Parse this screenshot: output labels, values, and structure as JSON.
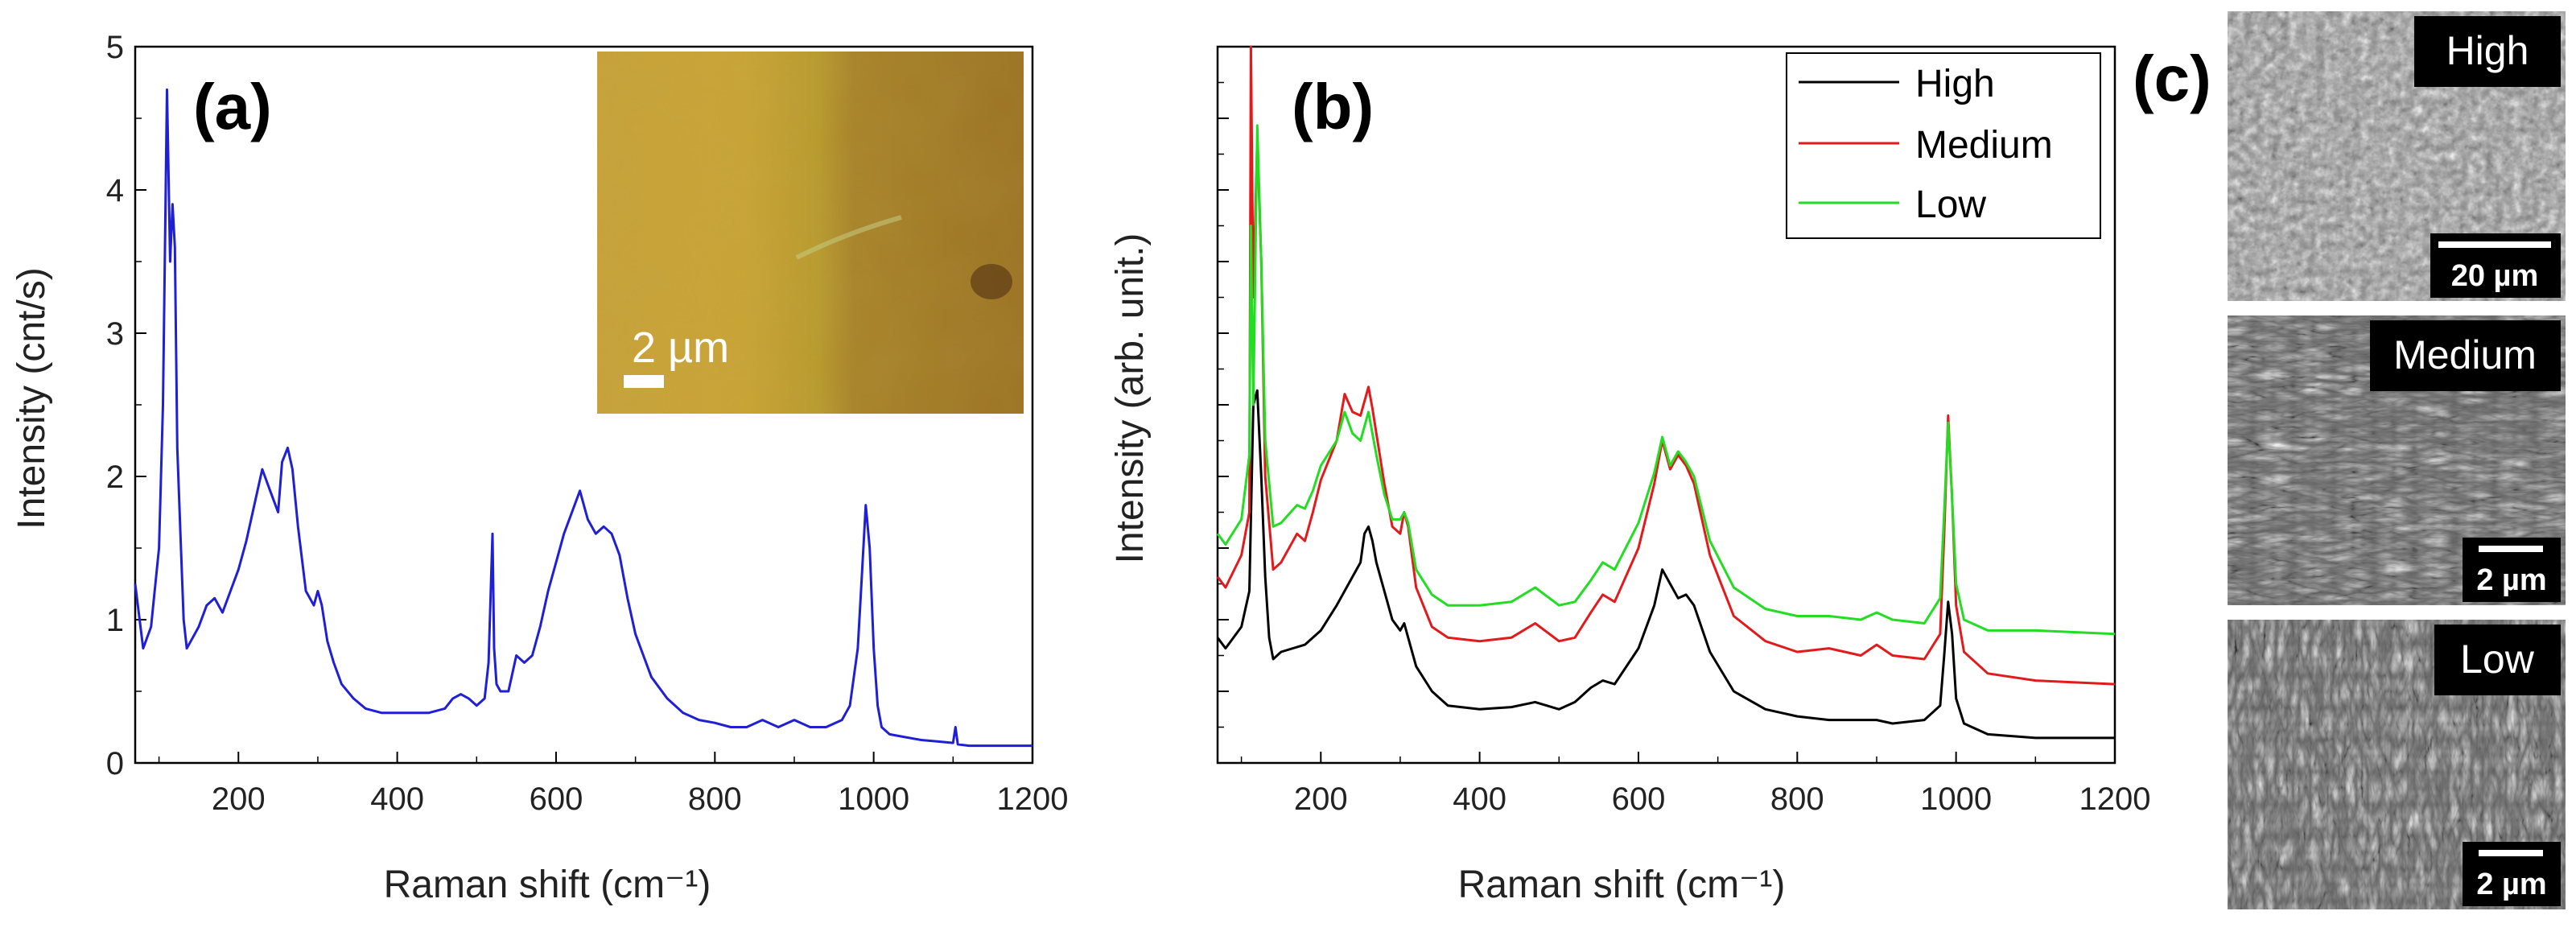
{
  "chart_data": [
    {
      "type": "line",
      "panel_label": "(a)",
      "xlabel": "Raman shift (cm⁻¹)",
      "ylabel": "Intensity (cnt/s)",
      "xlim": [
        70,
        1200
      ],
      "ylim": [
        0,
        5
      ],
      "xticks": [
        200,
        400,
        600,
        800,
        1000,
        1200
      ],
      "yticks": [
        0,
        1,
        2,
        3,
        4,
        5
      ],
      "series": [
        {
          "color": "#1f1fd6",
          "x": [
            70,
            80,
            90,
            100,
            105,
            110,
            114,
            117,
            120,
            123,
            127,
            131,
            135,
            140,
            150,
            160,
            170,
            180,
            190,
            200,
            210,
            220,
            230,
            240,
            250,
            255,
            262,
            268,
            275,
            285,
            295,
            300,
            305,
            312,
            320,
            330,
            345,
            360,
            380,
            400,
            420,
            440,
            460,
            470,
            480,
            490,
            500,
            510,
            515,
            520,
            522,
            525,
            530,
            540,
            550,
            560,
            570,
            580,
            590,
            600,
            610,
            620,
            630,
            640,
            650,
            660,
            670,
            680,
            690,
            700,
            710,
            720,
            740,
            760,
            780,
            800,
            820,
            840,
            860,
            880,
            900,
            920,
            940,
            960,
            970,
            980,
            985,
            990,
            995,
            1000,
            1005,
            1010,
            1020,
            1040,
            1060,
            1080,
            1100,
            1103,
            1106,
            1120,
            1140,
            1160,
            1180,
            1200
          ],
          "values": [
            1.25,
            0.8,
            0.95,
            1.5,
            2.5,
            4.7,
            3.5,
            3.9,
            3.6,
            2.2,
            1.6,
            1.0,
            0.8,
            0.85,
            0.95,
            1.1,
            1.15,
            1.05,
            1.2,
            1.35,
            1.55,
            1.8,
            2.05,
            1.9,
            1.75,
            2.1,
            2.2,
            2.05,
            1.65,
            1.2,
            1.1,
            1.2,
            1.1,
            0.85,
            0.7,
            0.55,
            0.45,
            0.38,
            0.35,
            0.35,
            0.35,
            0.35,
            0.38,
            0.45,
            0.48,
            0.45,
            0.4,
            0.45,
            0.7,
            1.6,
            0.8,
            0.55,
            0.5,
            0.5,
            0.75,
            0.7,
            0.75,
            0.95,
            1.2,
            1.4,
            1.6,
            1.75,
            1.9,
            1.7,
            1.6,
            1.65,
            1.6,
            1.45,
            1.15,
            0.9,
            0.75,
            0.6,
            0.45,
            0.35,
            0.3,
            0.28,
            0.25,
            0.25,
            0.3,
            0.25,
            0.3,
            0.25,
            0.25,
            0.3,
            0.4,
            0.8,
            1.3,
            1.8,
            1.5,
            0.8,
            0.4,
            0.25,
            0.2,
            0.18,
            0.16,
            0.15,
            0.14,
            0.25,
            0.13,
            0.12,
            0.12,
            0.12,
            0.12,
            0.12
          ]
        }
      ],
      "inset": {
        "type": "optical-micrograph",
        "scale_label": "2 µm"
      }
    },
    {
      "type": "line",
      "panel_label": "(b)",
      "xlabel": "Raman shift (cm⁻¹)",
      "ylabel": "Intensity (arb. unit.)",
      "xlim": [
        70,
        1200
      ],
      "ylim": [
        0,
        10
      ],
      "xticks": [
        200,
        400,
        600,
        800,
        1000,
        1200
      ],
      "legend_position": "top-right",
      "series": [
        {
          "name": "High",
          "color": "#000000",
          "x": [
            70,
            80,
            100,
            110,
            115,
            120,
            125,
            130,
            135,
            140,
            150,
            180,
            200,
            220,
            240,
            250,
            255,
            260,
            265,
            270,
            280,
            290,
            300,
            305,
            310,
            320,
            340,
            360,
            400,
            440,
            470,
            500,
            520,
            540,
            555,
            570,
            600,
            620,
            630,
            640,
            650,
            660,
            670,
            690,
            720,
            760,
            800,
            840,
            880,
            900,
            920,
            960,
            980,
            985,
            990,
            995,
            1000,
            1010,
            1040,
            1100,
            1200
          ],
          "values": [
            1.75,
            1.6,
            1.9,
            2.4,
            5.0,
            5.2,
            4.0,
            2.6,
            1.75,
            1.45,
            1.55,
            1.65,
            1.85,
            2.2,
            2.6,
            2.8,
            3.2,
            3.3,
            3.1,
            2.8,
            2.4,
            2.0,
            1.85,
            1.95,
            1.75,
            1.35,
            1.0,
            0.8,
            0.75,
            0.78,
            0.85,
            0.75,
            0.85,
            1.05,
            1.15,
            1.1,
            1.6,
            2.2,
            2.7,
            2.5,
            2.3,
            2.35,
            2.2,
            1.55,
            1.0,
            0.75,
            0.65,
            0.6,
            0.6,
            0.6,
            0.55,
            0.6,
            0.8,
            1.5,
            2.25,
            1.8,
            0.9,
            0.55,
            0.4,
            0.35,
            0.35
          ]
        },
        {
          "name": "Medium",
          "color": "#e31a1c",
          "x": [
            70,
            80,
            100,
            110,
            112,
            115,
            120,
            125,
            130,
            140,
            150,
            170,
            180,
            190,
            200,
            220,
            230,
            240,
            250,
            260,
            265,
            270,
            280,
            290,
            300,
            305,
            310,
            320,
            340,
            360,
            400,
            440,
            470,
            500,
            520,
            540,
            555,
            570,
            600,
            620,
            630,
            640,
            650,
            660,
            670,
            690,
            720,
            760,
            800,
            840,
            880,
            900,
            920,
            960,
            980,
            985,
            990,
            995,
            1000,
            1010,
            1040,
            1100,
            1200
          ],
          "values": [
            2.6,
            2.45,
            2.9,
            3.5,
            10.0,
            6.5,
            8.7,
            7.0,
            4.0,
            2.7,
            2.8,
            3.2,
            3.1,
            3.5,
            3.95,
            4.5,
            5.15,
            4.9,
            4.85,
            5.25,
            4.95,
            4.6,
            3.9,
            3.3,
            3.2,
            3.5,
            3.3,
            2.45,
            1.9,
            1.75,
            1.7,
            1.75,
            1.95,
            1.7,
            1.75,
            2.1,
            2.35,
            2.25,
            3.0,
            3.9,
            4.5,
            4.1,
            4.3,
            4.15,
            3.9,
            2.9,
            2.05,
            1.7,
            1.55,
            1.6,
            1.5,
            1.65,
            1.5,
            1.45,
            1.8,
            3.2,
            4.85,
            3.7,
            2.2,
            1.55,
            1.25,
            1.15,
            1.1
          ]
        },
        {
          "name": "Low",
          "color": "#22dd22",
          "x": [
            70,
            80,
            100,
            110,
            112,
            115,
            120,
            125,
            130,
            140,
            150,
            170,
            180,
            190,
            200,
            220,
            230,
            240,
            250,
            260,
            265,
            270,
            280,
            290,
            300,
            305,
            310,
            320,
            340,
            360,
            400,
            440,
            470,
            500,
            520,
            540,
            555,
            570,
            600,
            620,
            630,
            640,
            650,
            660,
            670,
            690,
            720,
            760,
            800,
            840,
            880,
            900,
            920,
            960,
            980,
            985,
            990,
            995,
            1000,
            1010,
            1040,
            1100,
            1200
          ],
          "values": [
            3.2,
            3.05,
            3.4,
            4.3,
            7.5,
            5.0,
            8.9,
            7.0,
            4.5,
            3.3,
            3.35,
            3.6,
            3.55,
            3.8,
            4.15,
            4.5,
            4.9,
            4.6,
            4.5,
            4.9,
            4.6,
            4.3,
            3.75,
            3.4,
            3.4,
            3.5,
            3.35,
            2.7,
            2.35,
            2.2,
            2.2,
            2.25,
            2.45,
            2.2,
            2.25,
            2.55,
            2.8,
            2.7,
            3.35,
            4.05,
            4.55,
            4.15,
            4.35,
            4.2,
            4.0,
            3.1,
            2.45,
            2.15,
            2.05,
            2.05,
            2.0,
            2.1,
            2.0,
            1.95,
            2.3,
            3.5,
            4.75,
            3.7,
            2.5,
            2.0,
            1.85,
            1.85,
            1.8
          ]
        }
      ]
    },
    {
      "type": "image-panel",
      "panel_label": "(c)",
      "images": [
        {
          "label": "High",
          "scale_label": "20 µm"
        },
        {
          "label": "Medium",
          "scale_label": "2 µm"
        },
        {
          "label": "Low",
          "scale_label": "2 µm"
        }
      ]
    }
  ]
}
